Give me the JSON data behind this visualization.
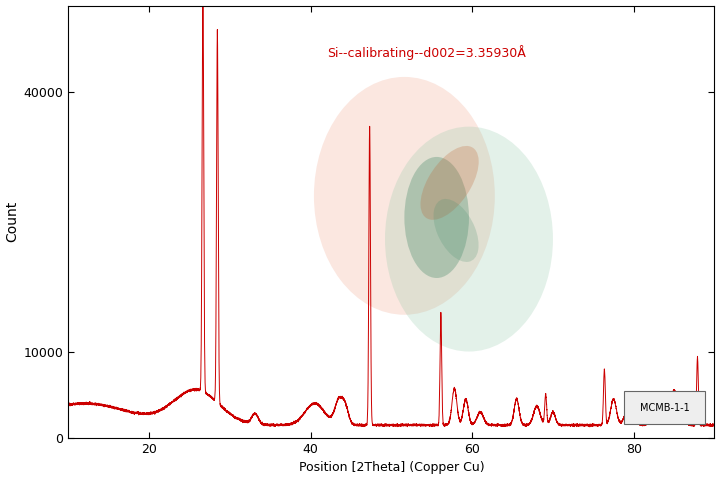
{
  "title": "",
  "ylabel": "Count",
  "xlabel": "Position [2Theta] (Copper Cu)",
  "annotation": "Si--calibrating--d002=3.35930Å",
  "legend_label": "MCMB-1-1",
  "xmin": 10,
  "xmax": 90,
  "ymin": 0,
  "ymax": 50000,
  "yticks": [
    0,
    10000,
    40000
  ],
  "xticks": [
    20,
    40,
    60,
    80
  ],
  "line_color": "#cc0000",
  "bg_color": "#ffffff",
  "annotation_color": "#cc0000",
  "logo_color1": "#f5c0a0",
  "logo_color2": "#a0cdb8",
  "baseline": 1500,
  "noise_std": 60
}
